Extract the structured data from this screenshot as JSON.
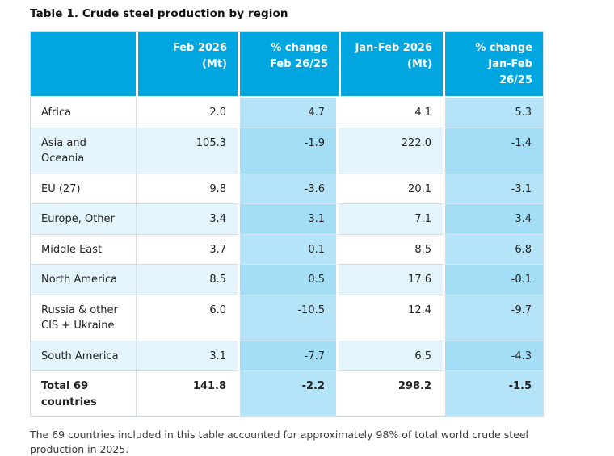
{
  "page": {
    "title": "Table 1. Crude steel production by region",
    "footnote": "The 69 countries included in this table accounted for approximately 98% of total world crude steel production in 2025."
  },
  "table": {
    "headers": {
      "region": "",
      "feb_line1": "Feb 2026",
      "feb_line2": "(Mt)",
      "chg_feb_line1": "% change",
      "chg_feb_line2": "Feb 26/25",
      "janfeb_line1": "Jan-Feb 2026",
      "janfeb_line2": "(Mt)",
      "chg_janfeb_line1": "% change",
      "chg_janfeb_line2": "Jan-Feb 26/25"
    },
    "rows": [
      {
        "region": "Africa",
        "feb": "2.0",
        "chg_feb": "4.7",
        "janfeb": "4.1",
        "chg_janfeb": "5.3"
      },
      {
        "region": "Asia and Oceania",
        "feb": "105.3",
        "chg_feb": "-1.9",
        "janfeb": "222.0",
        "chg_janfeb": "-1.4"
      },
      {
        "region": "EU (27)",
        "feb": "9.8",
        "chg_feb": "-3.6",
        "janfeb": "20.1",
        "chg_janfeb": "-3.1"
      },
      {
        "region": "Europe, Other",
        "feb": "3.4",
        "chg_feb": "3.1",
        "janfeb": "7.1",
        "chg_janfeb": "3.4"
      },
      {
        "region": "Middle East",
        "feb": "3.7",
        "chg_feb": "0.1",
        "janfeb": "8.5",
        "chg_janfeb": "6.8"
      },
      {
        "region": "North America",
        "feb": "8.5",
        "chg_feb": "0.5",
        "janfeb": "17.6",
        "chg_janfeb": "-0.1"
      },
      {
        "region": "Russia & other CIS + Ukraine",
        "feb": "6.0",
        "chg_feb": "-10.5",
        "janfeb": "12.4",
        "chg_janfeb": "-9.7"
      },
      {
        "region": "South America",
        "feb": "3.1",
        "chg_feb": "-7.7",
        "janfeb": "6.5",
        "chg_janfeb": "-4.3"
      }
    ],
    "total": {
      "region": "Total 69 countries",
      "feb": "141.8",
      "chg_feb": "-2.2",
      "janfeb": "298.2",
      "chg_janfeb": "-1.5"
    }
  },
  "colors": {
    "header_bg": "#00a6e0",
    "header_text": "#ffffff",
    "row_alt_bg": "#e4f4fc",
    "pct_bg": "#b5e4f8",
    "pct_alt_bg": "#a3def6",
    "body_text": "#232323",
    "footnote_text": "#3a3a3a",
    "border": "#d4dde1"
  }
}
